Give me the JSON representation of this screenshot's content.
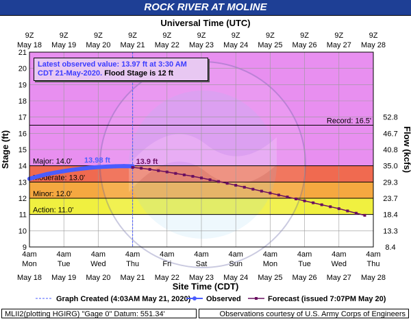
{
  "title": "ROCK RIVER AT MOLINE",
  "top_axis_title": "Universal Time (UTC)",
  "bottom_axis_title": "Site Time (CDT)",
  "left_axis_title": "Stage (ft)",
  "right_axis_title": "Flow (kcfs)",
  "info_box": {
    "line1": "Latest observed value: 13.97 ft at 3:30 AM",
    "line2_blue": "CDT 21-May-2020.",
    "line2_black": " Flood Stage is 12 ft"
  },
  "footer_left": "MLII2(plotting HGIRG) \"Gage 0\" Datum: 551.34'",
  "footer_right": "Observations courtesy of U.S. Army Corps of Engineers",
  "legend": {
    "created": "Graph Created (4:03AM May 21, 2020)",
    "observed": "Observed",
    "forecast": "Forecast (issued 7:07PM May 20)"
  },
  "labels": {
    "observed_peak": "13.98 ft",
    "forecast_start": "13.9 ft"
  },
  "colors": {
    "major": "#e040e8",
    "record_zone": "#e88ff0",
    "major_band": "#f06a50",
    "moderate": "#f5a840",
    "minor": "#f0f040",
    "action": "#ffffff",
    "observed": "#4a5cff",
    "forecast": "#6a1060",
    "title_bg": "#1e3f95"
  },
  "chart_data": {
    "type": "line",
    "y_range": [
      9,
      21
    ],
    "y_ticks": [
      9,
      10,
      11,
      12,
      13,
      14,
      15,
      16,
      17,
      18,
      19,
      20,
      21
    ],
    "flow_ticks": [
      {
        "stage": 9,
        "label": "8.4"
      },
      {
        "stage": 10,
        "label": "13.3"
      },
      {
        "stage": 11,
        "label": "18.4"
      },
      {
        "stage": 12,
        "label": "23.7"
      },
      {
        "stage": 13,
        "label": "29.3"
      },
      {
        "stage": 14,
        "label": "35.0"
      },
      {
        "stage": 15,
        "label": "40.8"
      },
      {
        "stage": 16,
        "label": "46.7"
      },
      {
        "stage": 17,
        "label": "52.8"
      }
    ],
    "x_range_days": [
      0,
      10
    ],
    "bottom_ticks": [
      {
        "time": "4am",
        "day": "Mon",
        "date": "May 18"
      },
      {
        "time": "4am",
        "day": "Tue",
        "date": "May 19"
      },
      {
        "time": "4am",
        "day": "Wed",
        "date": "May 20"
      },
      {
        "time": "4am",
        "day": "Thu",
        "date": "May 21"
      },
      {
        "time": "4am",
        "day": "Fri",
        "date": "May 22"
      },
      {
        "time": "4am",
        "day": "Sat",
        "date": "May 23"
      },
      {
        "time": "4am",
        "day": "Sun",
        "date": "May 24"
      },
      {
        "time": "4am",
        "day": "Mon",
        "date": "May 25"
      },
      {
        "time": "4am",
        "day": "Tue",
        "date": "May 26"
      },
      {
        "time": "4am",
        "day": "Wed",
        "date": "May 27"
      },
      {
        "time": "4am",
        "day": "Thu",
        "date": "May 28"
      }
    ],
    "top_ticks": [
      {
        "time": "9Z",
        "date": "May 18"
      },
      {
        "time": "9Z",
        "date": "May 19"
      },
      {
        "time": "9Z",
        "date": "May 20"
      },
      {
        "time": "9Z",
        "date": "May 21"
      },
      {
        "time": "9Z",
        "date": "May 22"
      },
      {
        "time": "9Z",
        "date": "May 23"
      },
      {
        "time": "9Z",
        "date": "May 24"
      },
      {
        "time": "9Z",
        "date": "May 25"
      },
      {
        "time": "9Z",
        "date": "May 26"
      },
      {
        "time": "9Z",
        "date": "May 27"
      },
      {
        "time": "9Z",
        "date": "May 28"
      }
    ],
    "flood_levels": [
      {
        "name": "Action",
        "label": "Action: 11.0'",
        "stage": 11.0
      },
      {
        "name": "Minor",
        "label": "Minor: 12.0'",
        "stage": 12.0
      },
      {
        "name": "Moderate",
        "label": "Moderate: 13.0'",
        "stage": 13.0
      },
      {
        "name": "Major",
        "label": "Major: 14.0'",
        "stage": 14.0
      }
    ],
    "record": {
      "label": "Record: 16.5'",
      "stage": 16.5
    },
    "graph_created_day": 3.0,
    "observed": {
      "name": "Observed",
      "x": [
        0.0,
        0.25,
        0.5,
        0.75,
        1.0,
        1.25,
        1.5,
        1.75,
        2.0,
        2.25,
        2.5,
        2.75,
        3.0
      ],
      "y": [
        13.2,
        13.35,
        13.48,
        13.58,
        13.67,
        13.75,
        13.82,
        13.88,
        13.92,
        13.95,
        13.97,
        13.98,
        13.97
      ]
    },
    "forecast": {
      "name": "Forecast",
      "x": [
        3.0,
        3.25,
        3.5,
        3.75,
        4.0,
        4.25,
        4.5,
        4.75,
        5.0,
        5.25,
        5.5,
        5.75,
        6.0,
        6.25,
        6.5,
        6.75,
        7.0,
        7.25,
        7.5,
        7.75,
        8.0,
        8.25,
        8.5,
        8.75,
        9.0,
        9.25,
        9.5,
        9.75
      ],
      "y": [
        13.9,
        13.85,
        13.78,
        13.7,
        13.62,
        13.53,
        13.44,
        13.35,
        13.25,
        13.14,
        13.03,
        12.92,
        12.8,
        12.68,
        12.56,
        12.44,
        12.32,
        12.2,
        12.08,
        11.96,
        11.84,
        11.72,
        11.6,
        11.48,
        11.36,
        11.22,
        11.08,
        10.95
      ]
    }
  }
}
